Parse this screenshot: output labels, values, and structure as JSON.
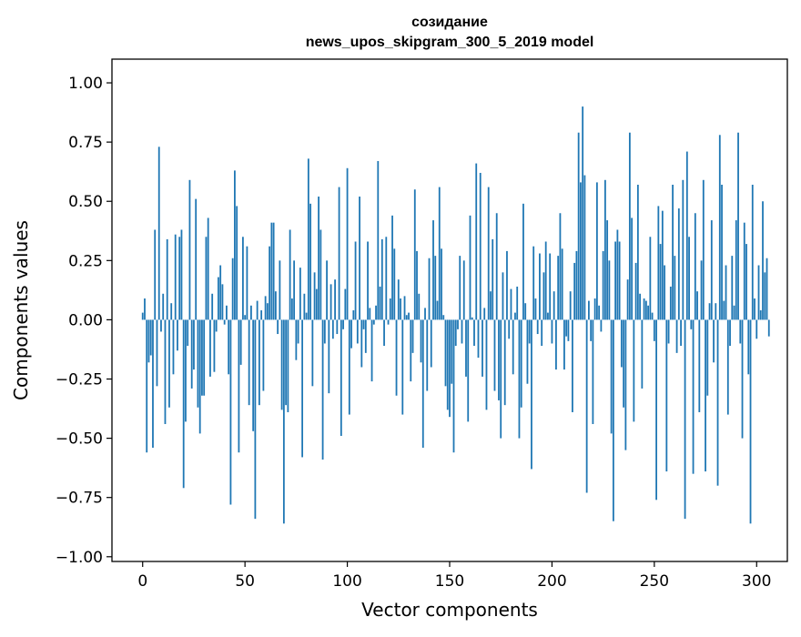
{
  "chart_data": {
    "type": "bar",
    "title_lines": [
      "созидание",
      "news_upos_skipgram_300_5_2019 model"
    ],
    "xlabel": "Vector components",
    "ylabel": "Components values",
    "xlim": [
      -15,
      315
    ],
    "ylim": [
      -1.02,
      1.1
    ],
    "xticks": [
      0,
      50,
      100,
      150,
      200,
      250,
      300
    ],
    "xtick_labels": [
      "0",
      "50",
      "100",
      "150",
      "200",
      "250",
      "300"
    ],
    "yticks": [
      -1.0,
      -0.75,
      -0.5,
      -0.25,
      0.0,
      0.25,
      0.5,
      0.75,
      1.0
    ],
    "ytick_labels": [
      "−1.00",
      "−0.75",
      "−0.50",
      "−0.25",
      "0.00",
      "0.25",
      "0.50",
      "0.75",
      "1.00"
    ],
    "grid": false,
    "bar_color": "#1f77b4",
    "values": [
      0.03,
      0.09,
      -0.56,
      -0.18,
      -0.15,
      -0.54,
      0.38,
      -0.28,
      0.73,
      -0.05,
      0.11,
      -0.44,
      0.34,
      -0.37,
      0.07,
      -0.23,
      0.36,
      -0.13,
      0.35,
      0.38,
      -0.71,
      -0.43,
      -0.11,
      0.59,
      -0.29,
      -0.21,
      0.51,
      -0.37,
      -0.48,
      -0.32,
      -0.32,
      0.35,
      0.43,
      -0.24,
      0.11,
      -0.22,
      -0.05,
      0.18,
      0.23,
      0.15,
      -0.02,
      0.06,
      -0.23,
      -0.78,
      0.26,
      0.63,
      0.48,
      -0.56,
      -0.19,
      0.35,
      0.02,
      0.31,
      -0.36,
      0.06,
      -0.47,
      -0.84,
      0.08,
      -0.36,
      0.04,
      -0.3,
      0.1,
      0.07,
      0.31,
      0.41,
      0.41,
      0.12,
      -0.06,
      0.25,
      -0.38,
      -0.86,
      -0.36,
      -0.39,
      0.38,
      0.09,
      0.25,
      -0.17,
      -0.1,
      0.22,
      -0.58,
      0.11,
      0.03,
      0.68,
      0.49,
      -0.28,
      0.2,
      0.13,
      0.52,
      0.38,
      -0.59,
      -0.1,
      0.25,
      -0.31,
      0.15,
      -0.08,
      0.17,
      -0.06,
      0.56,
      -0.49,
      -0.04,
      0.13,
      0.64,
      -0.4,
      -0.12,
      0.04,
      0.33,
      -0.1,
      0.52,
      -0.2,
      -0.04,
      -0.14,
      0.33,
      0.05,
      -0.26,
      -0.02,
      0.06,
      0.67,
      0.14,
      0.34,
      -0.11,
      0.35,
      -0.02,
      0.09,
      0.44,
      0.3,
      -0.32,
      0.17,
      0.09,
      -0.4,
      0.1,
      0.02,
      0.03,
      -0.26,
      -0.14,
      0.55,
      0.29,
      0.11,
      -0.18,
      -0.54,
      0.05,
      -0.3,
      0.26,
      -0.2,
      0.42,
      0.27,
      0.08,
      0.56,
      0.3,
      0.02,
      -0.28,
      -0.38,
      -0.41,
      -0.27,
      -0.56,
      -0.11,
      -0.04,
      0.27,
      -0.1,
      0.25,
      -0.24,
      -0.43,
      0.44,
      0.01,
      -0.11,
      0.66,
      -0.16,
      0.62,
      -0.24,
      0.05,
      -0.38,
      0.56,
      0.12,
      0.34,
      -0.3,
      0.45,
      -0.34,
      -0.5,
      0.2,
      -0.36,
      0.29,
      -0.08,
      0.13,
      -0.23,
      0.03,
      0.14,
      -0.5,
      -0.37,
      0.49,
      0.07,
      -0.27,
      -0.1,
      -0.63,
      0.31,
      0.09,
      -0.06,
      0.28,
      -0.11,
      0.2,
      0.33,
      0.03,
      0.28,
      -0.1,
      0.12,
      -0.21,
      0.27,
      0.45,
      0.3,
      -0.21,
      -0.07,
      -0.09,
      0.12,
      -0.39,
      0.24,
      0.29,
      0.79,
      0.58,
      0.9,
      0.61,
      -0.73,
      0.08,
      -0.09,
      -0.44,
      0.09,
      0.58,
      0.06,
      -0.05,
      0.29,
      0.59,
      0.42,
      0.25,
      -0.48,
      -0.85,
      0.33,
      0.38,
      0.33,
      -0.2,
      -0.37,
      -0.55,
      0.17,
      0.79,
      0.43,
      -0.43,
      0.24,
      0.57,
      0.11,
      -0.29,
      0.09,
      0.08,
      0.06,
      0.35,
      0.03,
      -0.09,
      -0.76,
      0.48,
      0.32,
      0.46,
      0.23,
      -0.64,
      -0.1,
      0.14,
      0.57,
      0.27,
      -0.14,
      0.47,
      -0.11,
      0.59,
      -0.84,
      0.71,
      0.35,
      -0.04,
      -0.65,
      0.45,
      0.12,
      -0.39,
      0.25,
      0.59,
      -0.64,
      -0.32,
      0.07,
      0.42,
      -0.18,
      0.07,
      -0.7,
      0.78,
      0.57,
      0.08,
      0.23,
      -0.4,
      -0.11,
      0.27,
      0.06,
      0.42,
      0.79,
      -0.1,
      -0.5,
      0.41,
      0.32,
      -0.23,
      -0.86,
      0.57,
      0.09,
      -0.08,
      0.23,
      0.04,
      0.5,
      0.2,
      0.26,
      -0.07
    ]
  }
}
